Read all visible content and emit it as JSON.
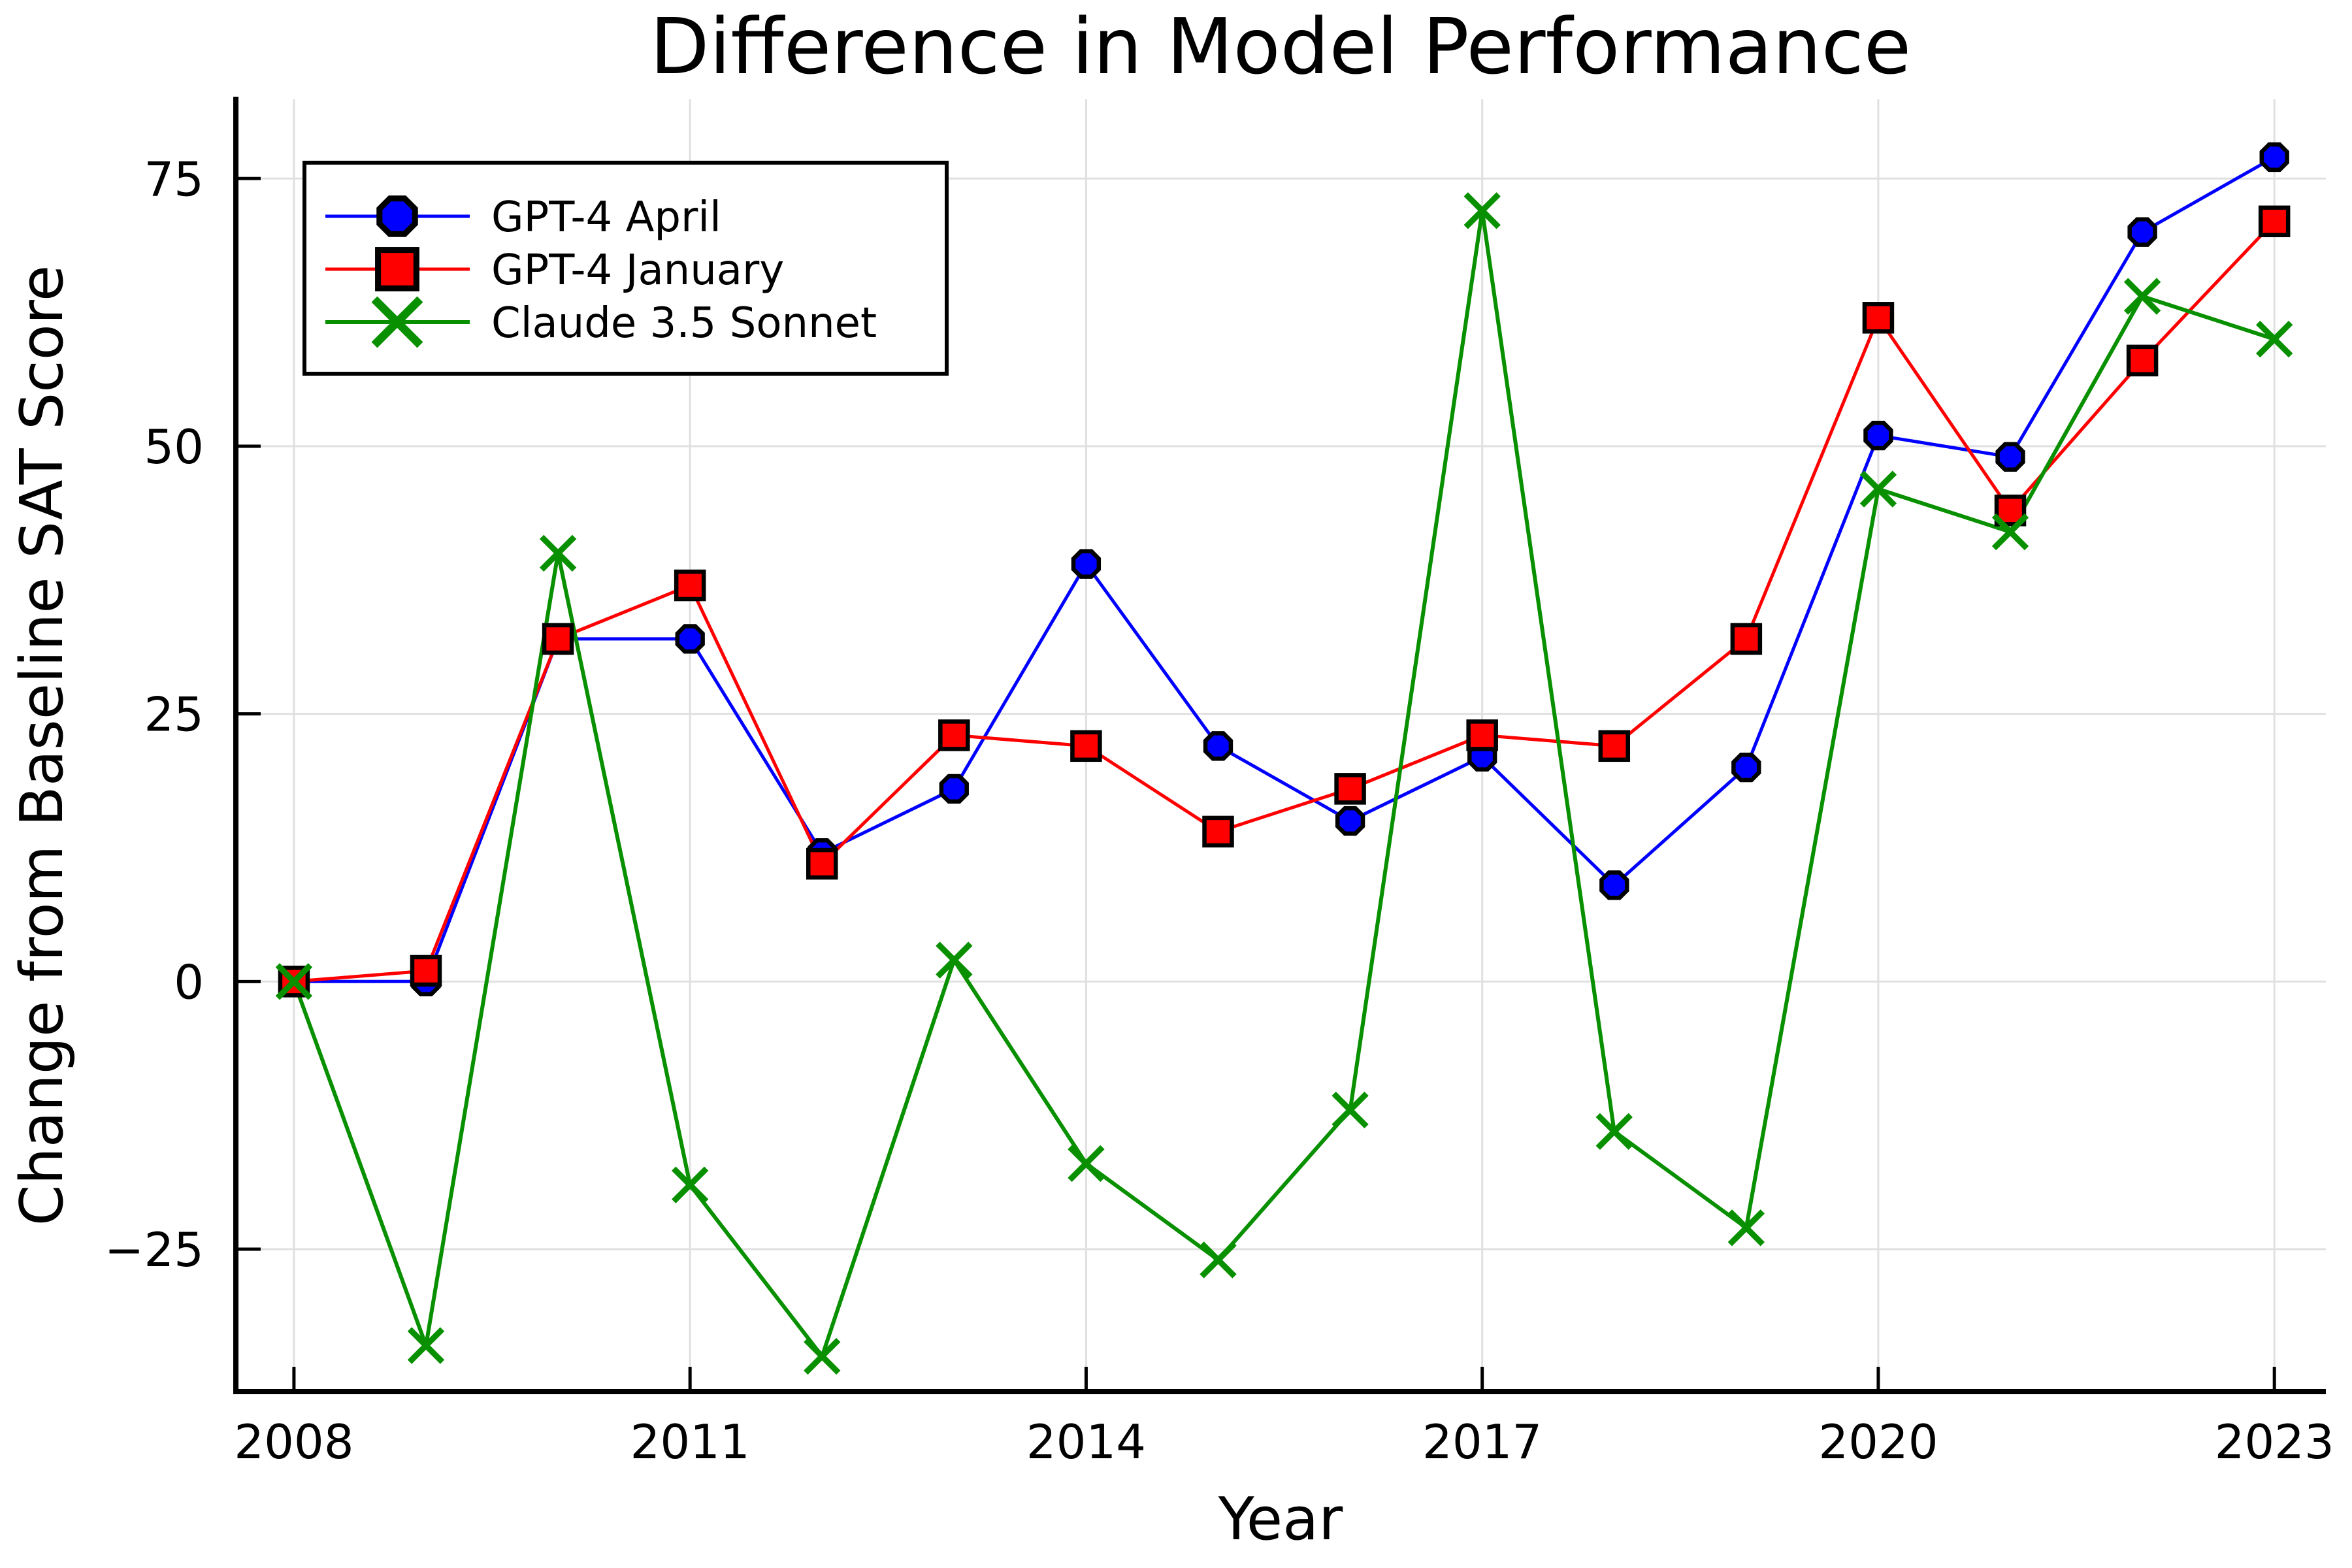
{
  "chart_data": {
    "type": "line",
    "title": "Difference in Model Performance",
    "xlabel": "Year",
    "ylabel": "Change from Baseline SAT Score",
    "x": [
      2008,
      2009,
      2010,
      2011,
      2012,
      2013,
      2014,
      2015,
      2016,
      2017,
      2018,
      2019,
      2020,
      2021,
      2022,
      2023
    ],
    "series": [
      {
        "name": "GPT-4 April",
        "color": "#0000ff",
        "marker": "octagon",
        "marker_edge": "#000000",
        "line_width": 5,
        "values": [
          0,
          0,
          32,
          32,
          12,
          18,
          39,
          22,
          15,
          21,
          9,
          20,
          51,
          49,
          70,
          77
        ]
      },
      {
        "name": "GPT-4 January",
        "color": "#ff0000",
        "marker": "square",
        "marker_edge": "#000000",
        "line_width": 5,
        "values": [
          0,
          1,
          32,
          37,
          11,
          23,
          22,
          14,
          18,
          23,
          22,
          32,
          62,
          44,
          58,
          71
        ]
      },
      {
        "name": "Claude 3.5 Sonnet",
        "color": "#089000",
        "marker": "x",
        "marker_edge": "#089000",
        "line_width": 6,
        "values": [
          0,
          -34,
          40,
          -19,
          -35,
          2,
          -17,
          -26,
          -12,
          72,
          -14,
          -23,
          46,
          42,
          64,
          60
        ]
      }
    ],
    "xticks": [
      2008,
      2011,
      2014,
      2017,
      2020,
      2023
    ],
    "xtick_labels": [
      "2008",
      "2011",
      "2014",
      "2017",
      "2020",
      "2023"
    ],
    "yticks": [
      -25,
      0,
      25,
      50,
      75
    ],
    "ytick_labels": [
      "−25",
      "0",
      "25",
      "50",
      "75"
    ],
    "xlim": [
      2007.56,
      2023.39
    ],
    "ylim": [
      -38.3,
      82.4
    ],
    "grid": true,
    "legend_position": "top-left",
    "colors": {
      "background": "#ffffff",
      "grid": "#e0e0e0",
      "axis": "#000000",
      "text": "#000000"
    }
  }
}
